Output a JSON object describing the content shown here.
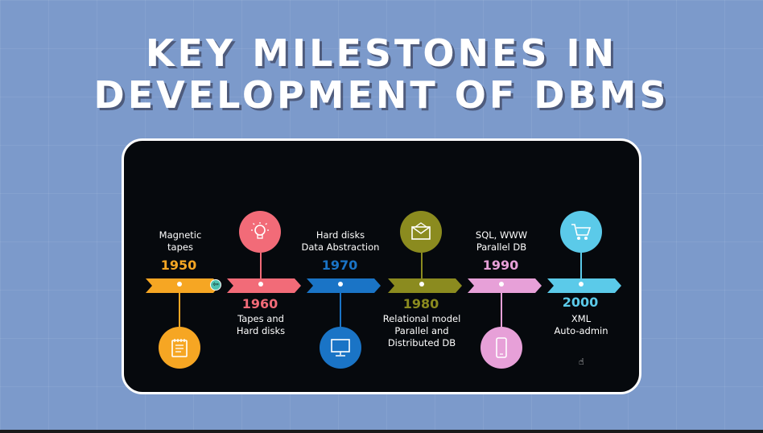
{
  "title": {
    "line1": "KEY MILESTONES IN",
    "line2": "DEVELOPMENT OF DBMS"
  },
  "milestones": [
    {
      "year": "1950",
      "lines": [
        "Magnetic",
        "tapes"
      ],
      "color": "#f6a623",
      "icon": "notepad-icon"
    },
    {
      "year": "1960",
      "lines": [
        "Tapes and",
        "Hard disks"
      ],
      "color": "#f26b78",
      "icon": "lightbulb-icon"
    },
    {
      "year": "1970",
      "lines": [
        "Hard disks",
        "Data Abstraction"
      ],
      "color": "#1a74c6",
      "icon": "monitor-icon"
    },
    {
      "year": "1980",
      "lines": [
        "Relational model",
        "Parallel and",
        "Distributed DB"
      ],
      "color": "#8b8b1f",
      "icon": "envelope-icon"
    },
    {
      "year": "1990",
      "lines": [
        "SQL, WWW",
        "Parallel DB"
      ],
      "color": "#e7a0d8",
      "icon": "smartphone-icon"
    },
    {
      "year": "2000",
      "lines": [
        "XML",
        "Auto-admin"
      ],
      "color": "#5bcae9",
      "icon": "shopping-cart-icon"
    }
  ],
  "indicators": {
    "nav_glyph": "⇦",
    "pointer_glyph": "☝"
  }
}
